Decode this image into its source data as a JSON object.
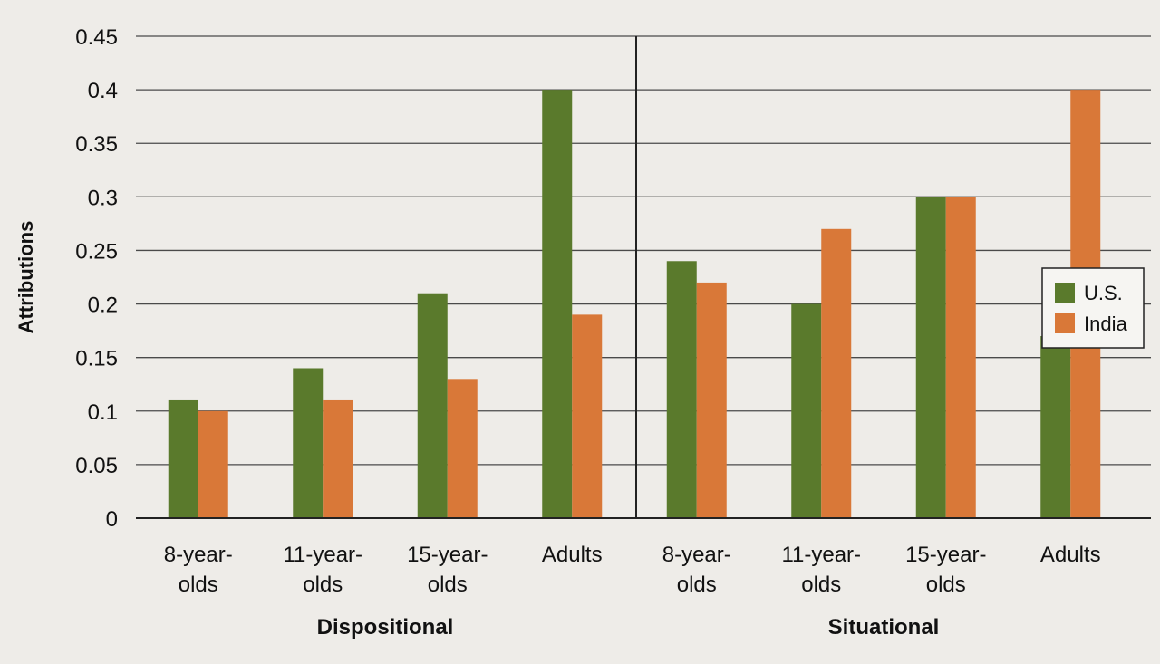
{
  "chart_data": {
    "type": "bar",
    "ylabel": "Attributions",
    "ylim": [
      0,
      0.45
    ],
    "yticks": [
      0,
      0.05,
      0.1,
      0.15,
      0.2,
      0.25,
      0.3,
      0.35,
      0.4,
      0.45
    ],
    "ytick_labels": [
      "0",
      "0.05",
      "0.1",
      "0.15",
      "0.2",
      "0.25",
      "0.3",
      "0.35",
      "0.4",
      "0.45"
    ],
    "grid": true,
    "legend_position": "right",
    "groups": [
      {
        "name": "Dispositional",
        "categories": [
          [
            "8-year-",
            "olds"
          ],
          [
            "11-year-",
            "olds"
          ],
          [
            "15-year-",
            "olds"
          ],
          [
            "Adults"
          ]
        ]
      },
      {
        "name": "Situational",
        "categories": [
          [
            "8-year-",
            "olds"
          ],
          [
            "11-year-",
            "olds"
          ],
          [
            "15-year-",
            "olds"
          ],
          [
            "Adults"
          ]
        ]
      }
    ],
    "series": [
      {
        "name": "U.S.",
        "color": "#5a7a2c",
        "values": [
          0.11,
          0.14,
          0.21,
          0.4,
          0.24,
          0.2,
          0.3,
          0.17
        ]
      },
      {
        "name": "India",
        "color": "#d97838",
        "values": [
          0.1,
          0.11,
          0.13,
          0.19,
          0.22,
          0.27,
          0.3,
          0.4
        ]
      }
    ]
  }
}
